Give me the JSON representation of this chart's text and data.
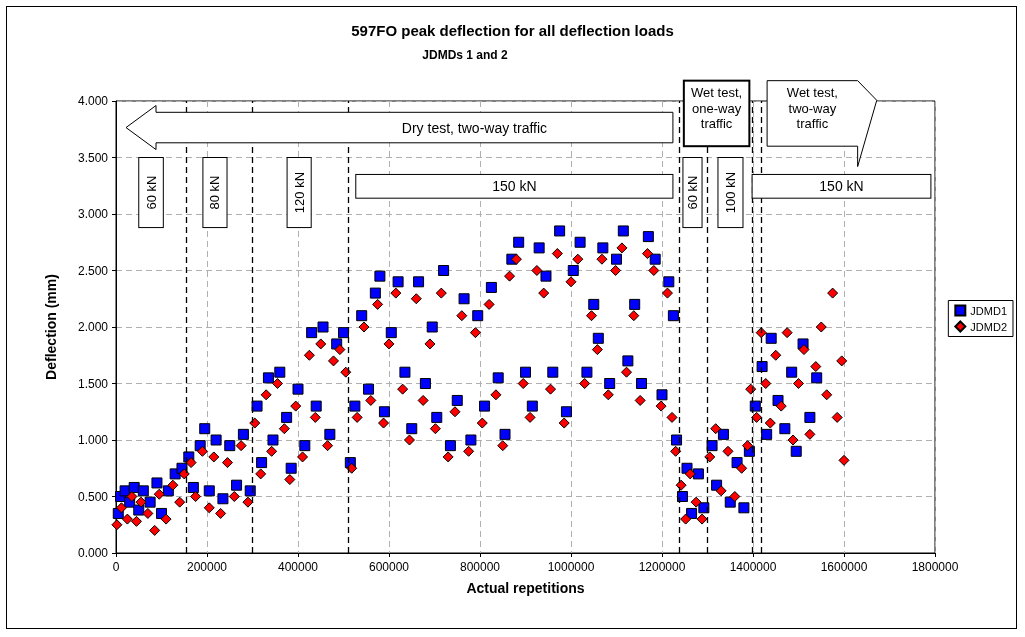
{
  "chart_data": {
    "type": "scatter",
    "title": "597FO peak deflection for all deflection loads",
    "subtitle": "JDMDs 1 and 2",
    "xlabel": "Actual repetitions",
    "ylabel": "Deflection (mm)",
    "xlim": [
      0,
      1800000
    ],
    "xticks": [
      0,
      200000,
      400000,
      600000,
      800000,
      1000000,
      1200000,
      1400000,
      1600000,
      1800000
    ],
    "ylim": [
      0,
      4
    ],
    "yticks": [
      {
        "value": 0,
        "label": "0.000"
      },
      {
        "value": 0.5,
        "label": "0.500"
      },
      {
        "value": 1,
        "label": "1.000"
      },
      {
        "value": 1.5,
        "label": "1.500"
      },
      {
        "value": 2,
        "label": "2.000"
      },
      {
        "value": 2.5,
        "label": "2.500"
      },
      {
        "value": 3,
        "label": "3.000"
      },
      {
        "value": 3.5,
        "label": "3.500"
      },
      {
        "value": 4,
        "label": "4.000"
      }
    ],
    "grid": true,
    "legend": "right",
    "series": [
      {
        "name": "JDMD1",
        "color": "#0000ff",
        "marker": "square",
        "x": [
          5000,
          10000,
          20000,
          30000,
          40000,
          50000,
          60000,
          75000,
          90000,
          100000,
          115000,
          130000,
          145000,
          160000,
          170000,
          185000,
          195000,
          205000,
          220000,
          235000,
          250000,
          265000,
          280000,
          295000,
          310000,
          320000,
          335000,
          345000,
          360000,
          375000,
          385000,
          400000,
          415000,
          430000,
          440000,
          455000,
          470000,
          485000,
          500000,
          515000,
          525000,
          540000,
          555000,
          570000,
          580000,
          590000,
          605000,
          620000,
          635000,
          650000,
          665000,
          680000,
          695000,
          705000,
          720000,
          735000,
          750000,
          765000,
          780000,
          795000,
          810000,
          825000,
          840000,
          855000,
          870000,
          885000,
          900000,
          915000,
          930000,
          945000,
          960000,
          975000,
          990000,
          1005000,
          1020000,
          1035000,
          1050000,
          1060000,
          1070000,
          1085000,
          1100000,
          1115000,
          1125000,
          1140000,
          1155000,
          1170000,
          1185000,
          1200000,
          1215000,
          1225000,
          1232000,
          1245000,
          1255000,
          1265000,
          1280000,
          1292000,
          1310000,
          1320000,
          1335000,
          1350000,
          1365000,
          1380000,
          1392000,
          1405000,
          1420000,
          1430000,
          1440000,
          1455000,
          1470000,
          1485000,
          1495000,
          1510000,
          1525000,
          1540000
        ],
        "values": [
          0.35,
          0.5,
          0.55,
          0.45,
          0.58,
          0.38,
          0.55,
          0.45,
          0.62,
          0.35,
          0.55,
          0.7,
          0.75,
          0.85,
          0.58,
          0.95,
          1.1,
          0.55,
          1.0,
          0.48,
          0.95,
          0.6,
          1.05,
          0.55,
          1.3,
          0.8,
          1.55,
          1.0,
          1.6,
          1.2,
          0.75,
          1.45,
          0.95,
          1.95,
          1.3,
          2.0,
          1.05,
          1.85,
          1.95,
          0.8,
          1.3,
          2.1,
          1.45,
          2.3,
          2.45,
          1.25,
          1.95,
          2.4,
          1.6,
          1.1,
          2.4,
          1.5,
          2.0,
          1.2,
          2.5,
          0.95,
          1.35,
          2.25,
          1.0,
          2.1,
          1.3,
          2.35,
          1.55,
          1.05,
          2.6,
          2.75,
          1.6,
          1.3,
          2.7,
          2.45,
          1.6,
          2.85,
          1.25,
          2.5,
          2.75,
          1.6,
          2.2,
          1.9,
          2.7,
          1.5,
          2.6,
          2.85,
          1.7,
          2.2,
          1.5,
          2.8,
          2.6,
          1.4,
          2.4,
          2.1,
          1.0,
          0.5,
          0.75,
          0.35,
          0.7,
          0.4,
          0.95,
          0.6,
          1.05,
          0.45,
          0.8,
          0.4,
          0.9,
          1.3,
          1.65,
          1.05,
          1.9,
          1.35,
          1.1,
          1.6,
          0.9,
          1.85,
          1.2,
          1.55
        ]
      },
      {
        "name": "JDMD2",
        "color": "#ff0000",
        "marker": "diamond",
        "x": [
          2000,
          12000,
          25000,
          35000,
          45000,
          55000,
          70000,
          85000,
          95000,
          110000,
          125000,
          140000,
          150000,
          165000,
          175000,
          190000,
          205000,
          215000,
          230000,
          245000,
          260000,
          275000,
          290000,
          305000,
          318000,
          330000,
          342000,
          355000,
          370000,
          382000,
          395000,
          410000,
          425000,
          438000,
          450000,
          465000,
          478000,
          492000,
          505000,
          518000,
          530000,
          545000,
          560000,
          575000,
          588000,
          600000,
          615000,
          630000,
          645000,
          660000,
          675000,
          690000,
          702000,
          715000,
          730000,
          745000,
          760000,
          775000,
          790000,
          805000,
          820000,
          835000,
          850000,
          865000,
          880000,
          895000,
          910000,
          925000,
          940000,
          955000,
          970000,
          985000,
          1000000,
          1015000,
          1030000,
          1045000,
          1058000,
          1068000,
          1082000,
          1098000,
          1112000,
          1122000,
          1138000,
          1152000,
          1168000,
          1182000,
          1198000,
          1212000,
          1222000,
          1230000,
          1242000,
          1252000,
          1262000,
          1275000,
          1288000,
          1305000,
          1318000,
          1330000,
          1345000,
          1360000,
          1375000,
          1388000,
          1395000,
          1408000,
          1418000,
          1428000,
          1438000,
          1450000,
          1462000,
          1475000,
          1488000,
          1500000,
          1512000,
          1525000,
          1538000,
          1550000,
          1562000,
          1575000,
          1585000,
          1595000,
          1600000
        ],
        "values": [
          0.25,
          0.4,
          0.3,
          0.5,
          0.28,
          0.45,
          0.35,
          0.2,
          0.52,
          0.3,
          0.6,
          0.45,
          0.7,
          0.8,
          0.5,
          0.9,
          0.4,
          0.85,
          0.35,
          0.8,
          0.5,
          0.95,
          0.45,
          1.15,
          0.7,
          1.4,
          0.9,
          1.5,
          1.1,
          0.65,
          1.3,
          0.85,
          1.75,
          1.2,
          1.85,
          0.95,
          1.7,
          1.8,
          1.6,
          0.75,
          1.2,
          2.0,
          1.35,
          2.2,
          1.15,
          1.85,
          2.3,
          1.45,
          1.0,
          2.25,
          1.35,
          1.85,
          1.1,
          2.3,
          0.85,
          1.25,
          2.1,
          0.9,
          1.95,
          1.15,
          2.2,
          1.4,
          0.95,
          2.45,
          2.6,
          1.5,
          1.2,
          2.5,
          2.3,
          1.45,
          2.65,
          1.15,
          2.4,
          2.6,
          1.5,
          2.1,
          1.8,
          2.6,
          1.4,
          2.5,
          2.7,
          1.6,
          2.1,
          1.35,
          2.65,
          2.5,
          1.3,
          2.3,
          1.2,
          0.9,
          0.6,
          0.3,
          0.7,
          0.45,
          0.3,
          0.85,
          1.1,
          0.55,
          0.9,
          0.5,
          0.75,
          0.95,
          1.45,
          1.2,
          1.95,
          1.5,
          1.15,
          1.75,
          1.3,
          1.95,
          1.0,
          1.5,
          1.8,
          1.05,
          1.65,
          2.0,
          1.4,
          2.3,
          1.2,
          1.7,
          0.82
        ]
      }
    ],
    "ref_lines": [
      {
        "axis": "x",
        "value": 155000,
        "line_style": "dashed",
        "color": "#000000"
      },
      {
        "axis": "x",
        "value": 300000,
        "line_style": "dashed",
        "color": "#000000"
      },
      {
        "axis": "x",
        "value": 510000,
        "line_style": "dashed",
        "color": "#000000"
      },
      {
        "axis": "x",
        "value": 1237000,
        "line_style": "dashed",
        "color": "#000000"
      },
      {
        "axis": "x",
        "value": 1300000,
        "line_style": "dashed",
        "color": "#000000"
      },
      {
        "axis": "x",
        "value": 1398000,
        "line_style": "dashed",
        "color": "#000000"
      },
      {
        "axis": "x",
        "value": 1418000,
        "line_style": "dashed",
        "color": "#000000"
      }
    ],
    "annotations": [
      "Dry test, two-way traffic",
      "Wet test, one-way traffic",
      "Wet test, two-way traffic",
      "60 kN",
      "80 kN",
      "120 kN",
      "150 kN",
      "60 kN",
      "100 kN",
      "150 kN"
    ]
  }
}
